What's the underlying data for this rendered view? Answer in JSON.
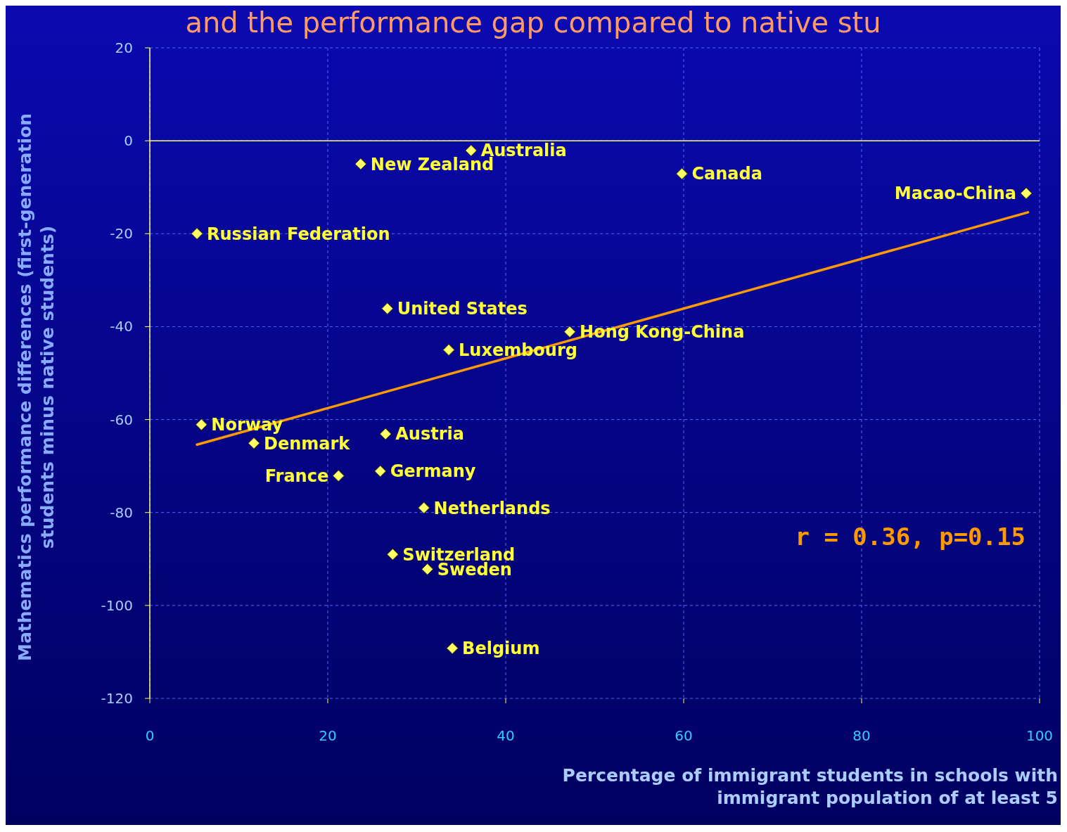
{
  "chart_data": {
    "type": "scatter",
    "title": "and the performance gap compared to native stu",
    "xlabel": "Percentage of immigrant students in schools with immigrant population of at least 5",
    "ylabel": "Mathematics performance differences (first-generation students minus native students)",
    "xlim": [
      0,
      100
    ],
    "xticks": [
      0,
      20,
      40,
      60,
      80,
      100
    ],
    "ylim": [
      -120,
      20
    ],
    "yticks": [
      -120,
      -100,
      -80,
      -60,
      -40,
      -20,
      0,
      20
    ],
    "grid": true,
    "marker": "diamond",
    "ref_lines": [
      {
        "axis": "y",
        "value": 0,
        "color": "#ffff66"
      }
    ],
    "series": [
      {
        "color": "#ffff66",
        "x": [
          23.7,
          36.1,
          59.8,
          98.5,
          5.3,
          26.7,
          47.2,
          33.6,
          5.8,
          11.7,
          26.5,
          25.9,
          21.2,
          30.8,
          27.3,
          31.2,
          34.0
        ],
        "values": [
          -5,
          -2.1,
          -7.1,
          -11.3,
          -20,
          -36.1,
          -41.1,
          -45,
          -61.1,
          -65.1,
          -63.1,
          -71.1,
          -72.1,
          -79,
          -89,
          -92.2,
          -109.2
        ]
      },
      {
        "type": "line",
        "color": "#ff9900",
        "marker": "none",
        "x": [
          5.3,
          98.7
        ],
        "values": [
          -65.4,
          -15.4
        ]
      }
    ],
    "annotations": [
      {
        "text": "New Zealand",
        "x": 23.7,
        "y": -5
      },
      {
        "text": "Australia",
        "x": 36.1,
        "y": -2.1
      },
      {
        "text": "Canada",
        "x": 59.8,
        "y": -7.1
      },
      {
        "text": "Macao-China",
        "x": 98.5,
        "y": -11.3
      },
      {
        "text": "Russian Federation",
        "x": 5.3,
        "y": -20
      },
      {
        "text": "United States",
        "x": 26.7,
        "y": -36.1
      },
      {
        "text": "Hong Kong-China",
        "x": 47.2,
        "y": -41.1
      },
      {
        "text": "Luxembourg",
        "x": 33.6,
        "y": -45
      },
      {
        "text": "Norway",
        "x": 5.8,
        "y": -61.1
      },
      {
        "text": "Denmark",
        "x": 11.7,
        "y": -65.1
      },
      {
        "text": "Austria",
        "x": 26.5,
        "y": -63.1
      },
      {
        "text": "Germany",
        "x": 25.9,
        "y": -71.1
      },
      {
        "text": "France",
        "x": 21.2,
        "y": -72.1
      },
      {
        "text": "Netherlands",
        "x": 30.8,
        "y": -79
      },
      {
        "text": "Switzerland",
        "x": 27.3,
        "y": -89
      },
      {
        "text": "Sweden",
        "x": 31.2,
        "y": -92.2
      },
      {
        "text": "Belgium",
        "x": 34.0,
        "y": -109.2
      },
      "r = 0.36, p=0.15"
    ]
  }
}
